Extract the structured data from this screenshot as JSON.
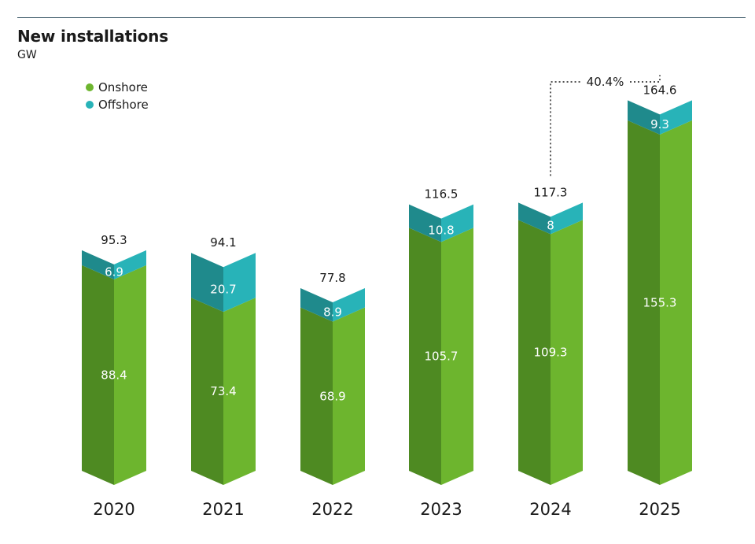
{
  "chart_data": {
    "type": "bar",
    "stacked": true,
    "title": "New installations",
    "subtitle": "GW",
    "categories": [
      "2020",
      "2021",
      "2022",
      "2023",
      "2024",
      "2025"
    ],
    "series": [
      {
        "name": "Onshore",
        "values": [
          88.4,
          73.4,
          68.9,
          105.7,
          109.3,
          155.3
        ],
        "color": "#6db52e",
        "shade": "#4e8a22"
      },
      {
        "name": "Offshore",
        "values": [
          6.9,
          20.7,
          8.9,
          10.8,
          8,
          9.3
        ],
        "color": "#28b3b8",
        "shade": "#1f8a8c"
      }
    ],
    "totals": [
      95.3,
      94.1,
      77.8,
      116.5,
      117.3,
      164.6
    ],
    "total_labels": [
      "95.3",
      "94.1",
      "77.8",
      "116.5",
      "117.3",
      "164.6"
    ],
    "onshore_labels": [
      "88.4",
      "73.4",
      "68.9",
      "105.7",
      "109.3",
      "155.3"
    ],
    "offshore_labels": [
      "6.9",
      "20.7",
      "8.9",
      "10.8",
      "8",
      "9.3"
    ],
    "annotation": {
      "text": "40.4%",
      "from": "2024",
      "to": "2025"
    },
    "legend_position": "top-left"
  }
}
